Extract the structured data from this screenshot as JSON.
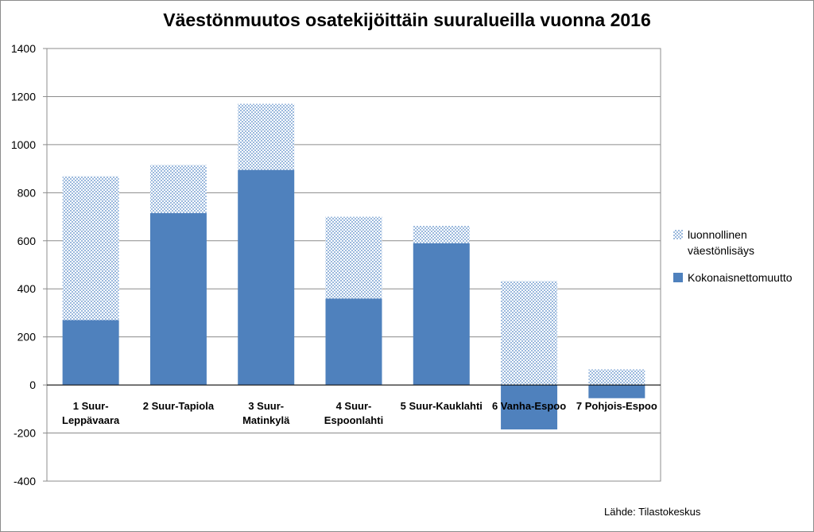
{
  "chart_data": {
    "type": "stacked-bar",
    "title": "Väestönmuutos osatekijöittäin suuralueilla vuonna 2016",
    "categories": [
      [
        "1 Suur-",
        "Leppävaara"
      ],
      [
        "2 Suur-Tapiola"
      ],
      [
        "3 Suur-",
        "Matinkylä"
      ],
      [
        "4 Suur-",
        "Espoonlahti"
      ],
      [
        "5 Suur-Kauklahti"
      ],
      [
        "6 Vanha-Espoo"
      ],
      [
        "7 Pohjois-Espoo"
      ]
    ],
    "series": [
      {
        "name": "Kokonaisnettomuutto",
        "color": "#4f81bd",
        "values": [
          270,
          715,
          895,
          360,
          590,
          -185,
          -55
        ]
      },
      {
        "name": "luonnollinen väestönlisäys",
        "color": "#c6d9f1",
        "values": [
          598,
          200,
          275,
          340,
          72,
          432,
          65
        ]
      }
    ],
    "ylim": [
      -400,
      1400
    ],
    "yticks": [
      -400,
      -200,
      0,
      200,
      400,
      600,
      800,
      1000,
      1200,
      1400
    ],
    "grid": true,
    "legend": {
      "position": "right",
      "entries": [
        {
          "label": "luonnollinen väestönlisäys",
          "lines": [
            "luonnollinen",
            "väestönlisäys"
          ]
        },
        {
          "label": "Kokonaisnettomuutto",
          "lines": [
            "Kokonaisnettomuutto"
          ]
        }
      ]
    },
    "source": "Lähde: Tilastokeskus"
  }
}
